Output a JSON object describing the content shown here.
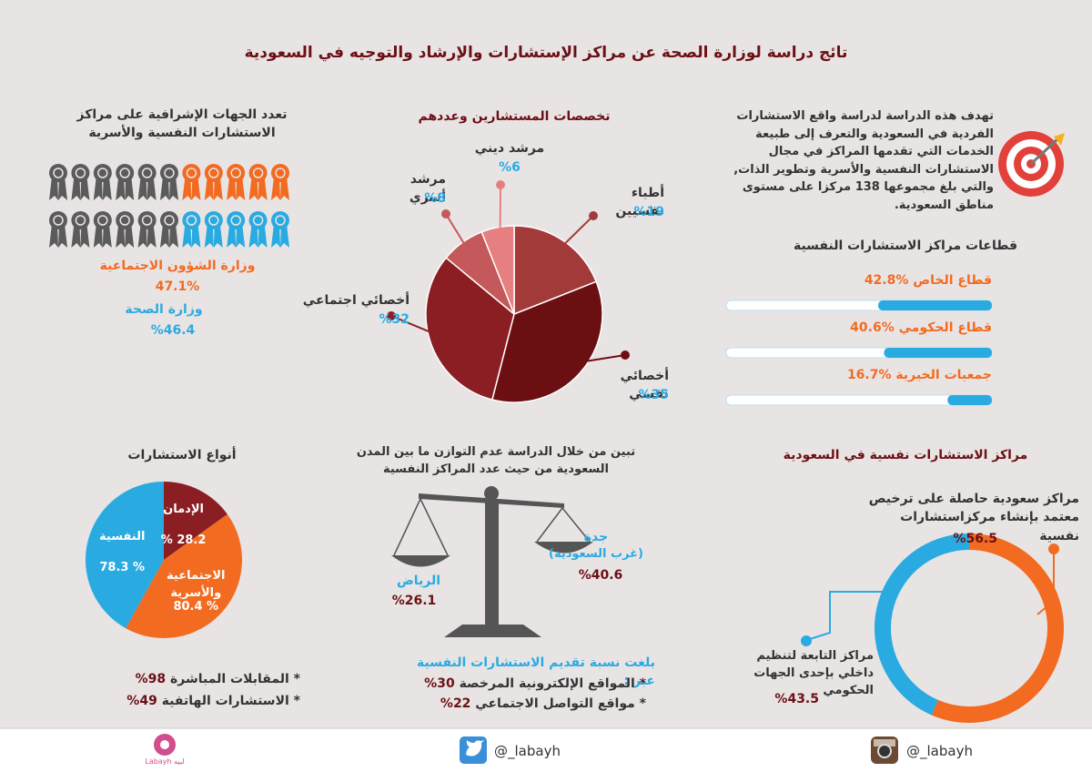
{
  "title": "تائج دراسة لوزارة الصحة عن مراكز الإستشارات والإرشاد والتوجيه في السعودية",
  "intro": "تهدف هذه الدراسة لدراسة واقع الاستشارات الفردية في السعودية والتعرف إلى طبيعة الخدمات التي تقدمها المراكز في مجال الاستشارات النفسية والأسرية وتطوير الذات, والتي بلغ مجموعها 138 مركزا على مستوى مناطق السعودية.",
  "sectors": {
    "title": "قطاعات مراكز الاستشارات النفسية",
    "color": "#29abe2",
    "items": [
      {
        "label": "قطاع الخاص",
        "value": 42.8,
        "value_label": "%42.8"
      },
      {
        "label": "قطاع الحكومي",
        "value": 40.6,
        "value_label": "%40.6"
      },
      {
        "label": "جمعيات الخيرية",
        "value": 16.7,
        "value_label": "%16.7"
      }
    ]
  },
  "specialists": {
    "type": "pie",
    "title": "تخصصات المستشارين وعددهم",
    "items": [
      {
        "label": "أطباء نفسيين",
        "value": 19,
        "value_label": "%19",
        "color": "#a33a3a"
      },
      {
        "label": "أخصائي نفسي",
        "value": 35,
        "value_label": "%35",
        "color": "#6b0f12"
      },
      {
        "label": "أخصائي اجتماعي",
        "value": 32,
        "value_label": "%32",
        "color": "#8b1e22"
      },
      {
        "label": "مرشد أسري",
        "value": 8,
        "value_label": "%8",
        "color": "#c4585a"
      },
      {
        "label": "مرشد ديني",
        "value": 6,
        "value_label": "%6",
        "color": "#e68080"
      }
    ]
  },
  "supervision": {
    "title": "تعدد الجهات الإشرافية على مراكز الاستشارات النفسية والأسرية",
    "items": [
      {
        "label": "وزارة الشؤون الاجتماعية",
        "value_label": "47.1%"
      },
      {
        "label": "وزارة الصحة",
        "value_label": "%46.4"
      }
    ]
  },
  "types": {
    "type": "pie",
    "title": "أنواع الاستشارات",
    "items": [
      {
        "label": "الإدمان",
        "value": 28.2,
        "value_label": "28.2 %",
        "color": "#8b1e22"
      },
      {
        "label": "الاجتماعية والأسرية",
        "value": 80.4,
        "value_label": "% 80.4",
        "color": "#f26b21"
      },
      {
        "label": "النفسية",
        "value": 78.3,
        "value_label": "% 78.3",
        "color": "#29abe2"
      }
    ]
  },
  "methods": [
    {
      "label": "المقابلات المباشرة",
      "value_label": "98%"
    },
    {
      "label": "الاستشارات الهاتفية",
      "value_label": "49%"
    }
  ],
  "balance": {
    "text": "تبين من خلال الدراسة عدم التوازن ما بين المدن السعودية من حيث عدد المراكز النفسية",
    "riyadh": {
      "label": "الرياض",
      "value_label": "%26.1"
    },
    "jeddah": {
      "label": "جدة",
      "sublabel": "(غرب السعودية)",
      "value_label": "%40.6"
    }
  },
  "online": {
    "title": "بلغت نسبة تقديم الاستشارات النفسية عبر :",
    "items": [
      {
        "label": "المواقع الإلكترونية المرخصة",
        "value_label": "30%"
      },
      {
        "label": "مواقع التواصل الاجتماعي",
        "value_label": "22%"
      }
    ]
  },
  "centers": {
    "type": "donut",
    "title": "مراكز الاستشارات نفسية في السعودية",
    "items": [
      {
        "label": "مراكز سعودية حاصلة على ترخيص معتمد بإنشاء مركزاستشارات نفسية",
        "value": 56.5,
        "value_label": "%56.5",
        "color": "#f26b21"
      },
      {
        "label": "مراكز التابعة لتنظيم داخلي بإحدى الجهات الحكومي",
        "value": 43.5,
        "value_label": "%43.5",
        "color": "#29abe2"
      }
    ]
  },
  "footer": {
    "instagram": "@_labayh",
    "twitter": "@_labayh",
    "logo": "Labayh لبيه"
  }
}
